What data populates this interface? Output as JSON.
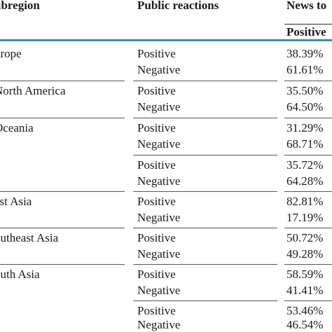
{
  "header": {
    "subregion": "ubregion",
    "public_reactions": "Public reactions",
    "news_to": "News to",
    "positive": "Positive"
  },
  "rows": [
    {
      "region": "urope",
      "reaction": "Positive",
      "value": "38.39%"
    },
    {
      "region": "",
      "reaction": "Negative",
      "value": "61.61%"
    },
    {
      "region": "North America",
      "reaction": "Positive",
      "value": "35.50%"
    },
    {
      "region": "",
      "reaction": "Negative",
      "value": "64.50%"
    },
    {
      "region": "Oceania",
      "reaction": "Positive",
      "value": "31.29%"
    },
    {
      "region": "",
      "reaction": "Negative",
      "value": "68.71%"
    },
    {
      "region": "",
      "reaction": "Positive",
      "value": "35.72%"
    },
    {
      "region": "",
      "reaction": "Negative",
      "value": "64.28%"
    },
    {
      "region": "ast Asia",
      "reaction": "Positive",
      "value": "82.81%"
    },
    {
      "region": "",
      "reaction": "Negative",
      "value": "17.19%"
    },
    {
      "region": "outheast Asia",
      "reaction": "Positive",
      "value": "50.72%"
    },
    {
      "region": "",
      "reaction": "Negative",
      "value": "49.28%"
    },
    {
      "region": "outh Asia",
      "reaction": "Positive",
      "value": "58.59%"
    },
    {
      "region": "",
      "reaction": "Negative",
      "value": "41.41%"
    },
    {
      "region": "",
      "reaction": "Positive",
      "value": "53.46%"
    },
    {
      "region": "",
      "reaction": "Negative",
      "value": "46.54%"
    }
  ],
  "colors": {
    "rule_accent": "#2a8fd0",
    "text": "#1a1a1a"
  }
}
